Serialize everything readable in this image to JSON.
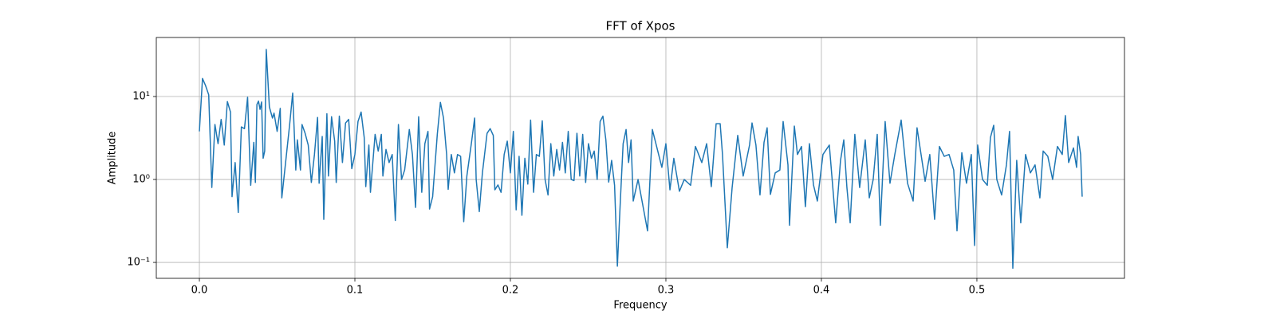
{
  "chart_data": {
    "type": "line",
    "title": "FFT of Xpos",
    "x_label": "Frequency",
    "y_label": "Amplitude",
    "color": "#1f77b4",
    "grid": true,
    "y_scale": "log",
    "xlim": [
      -0.0277,
      0.5949
    ],
    "ylim": [
      0.0643,
      51.5
    ],
    "xticks": [
      {
        "value": 0,
        "label": "0.0"
      },
      {
        "value": 0.1,
        "label": "0.1"
      },
      {
        "value": 0.2,
        "label": "0.2"
      },
      {
        "value": 0.3,
        "label": "0.3"
      },
      {
        "value": 0.4,
        "label": "0.4"
      },
      {
        "value": 0.5,
        "label": "0.5"
      }
    ],
    "yticks": [
      {
        "value": 0.1,
        "label": "10⁻¹"
      },
      {
        "value": 1,
        "label": "10⁰"
      },
      {
        "value": 10,
        "label": "10¹"
      }
    ],
    "x": [
      0,
      0.002,
      0.004,
      0.006,
      0.008,
      0.01,
      0.012,
      0.014,
      0.016,
      0.018,
      0.02,
      0.021,
      0.023,
      0.025,
      0.027,
      0.029,
      0.031,
      0.033,
      0.035,
      0.036,
      0.037,
      0.038,
      0.039,
      0.04,
      0.041,
      0.042,
      0.043,
      0.045,
      0.047,
      0.048,
      0.05,
      0.052,
      0.053,
      0.058,
      0.06,
      0.062,
      0.063,
      0.065,
      0.066,
      0.068,
      0.07,
      0.072,
      0.074,
      0.076,
      0.077,
      0.079,
      0.08,
      0.082,
      0.083,
      0.085,
      0.087,
      0.088,
      0.09,
      0.092,
      0.094,
      0.096,
      0.098,
      0.1,
      0.102,
      0.104,
      0.106,
      0.107,
      0.109,
      0.11,
      0.113,
      0.115,
      0.117,
      0.118,
      0.12,
      0.122,
      0.124,
      0.126,
      0.128,
      0.13,
      0.132,
      0.135,
      0.137,
      0.139,
      0.141,
      0.143,
      0.145,
      0.147,
      0.148,
      0.15,
      0.153,
      0.155,
      0.157,
      0.159,
      0.16,
      0.162,
      0.164,
      0.166,
      0.168,
      0.17,
      0.172,
      0.175,
      0.177,
      0.178,
      0.18,
      0.182,
      0.185,
      0.187,
      0.189,
      0.19,
      0.192,
      0.194,
      0.196,
      0.198,
      0.2,
      0.2019,
      0.2037,
      0.2056,
      0.2074,
      0.2093,
      0.2112,
      0.213,
      0.2149,
      0.2167,
      0.2186,
      0.2205,
      0.2223,
      0.2242,
      0.226,
      0.2279,
      0.2298,
      0.2316,
      0.2335,
      0.2353,
      0.2372,
      0.2391,
      0.2409,
      0.2428,
      0.2446,
      0.2465,
      0.2484,
      0.2502,
      0.2521,
      0.2539,
      0.2558,
      0.2577,
      0.2595,
      0.2614,
      0.2632,
      0.2651,
      0.267,
      0.2688,
      0.2707,
      0.2725,
      0.2744,
      0.276,
      0.2776,
      0.279,
      0.2821,
      0.2882,
      0.2913,
      0.2974,
      0.3,
      0.3026,
      0.3051,
      0.3087,
      0.3118,
      0.3159,
      0.319,
      0.3231,
      0.3262,
      0.3292,
      0.3323,
      0.3349,
      0.3364,
      0.3395,
      0.3426,
      0.3462,
      0.3497,
      0.3538,
      0.3554,
      0.3579,
      0.3605,
      0.3631,
      0.3651,
      0.3672,
      0.3703,
      0.3733,
      0.3754,
      0.3785,
      0.3795,
      0.3826,
      0.3846,
      0.3872,
      0.3897,
      0.3923,
      0.3949,
      0.3974,
      0.401,
      0.4051,
      0.4092,
      0.4123,
      0.4144,
      0.4164,
      0.4185,
      0.4215,
      0.4246,
      0.4282,
      0.4308,
      0.4333,
      0.4359,
      0.4379,
      0.441,
      0.4441,
      0.4472,
      0.4513,
      0.4554,
      0.459,
      0.4615,
      0.4641,
      0.4667,
      0.4697,
      0.4728,
      0.4759,
      0.479,
      0.4821,
      0.4851,
      0.4872,
      0.4903,
      0.4933,
      0.4964,
      0.4985,
      0.5005,
      0.5036,
      0.5067,
      0.5087,
      0.5108,
      0.5128,
      0.5159,
      0.519,
      0.521,
      0.5231,
      0.5256,
      0.5282,
      0.5313,
      0.5344,
      0.5374,
      0.5405,
      0.5426,
      0.5456,
      0.5487,
      0.5518,
      0.5549,
      0.5569,
      0.559,
      0.5621,
      0.5641,
      0.5651,
      0.5667,
      0.5677
    ],
    "values": [
      3.8,
      16.5,
      13.5,
      10.5,
      0.8,
      4.6,
      2.7,
      5.3,
      2.6,
      8.7,
      6.5,
      0.62,
      1.6,
      0.4,
      4.3,
      4.1,
      9.8,
      0.85,
      2.8,
      0.92,
      8.0,
      8.8,
      7.0,
      8.6,
      1.8,
      2.2,
      37,
      7.5,
      5.5,
      6.3,
      3.8,
      7.2,
      0.6,
      4.5,
      11,
      1.3,
      3.0,
      1.3,
      4.6,
      3.6,
      2.6,
      0.92,
      2.0,
      5.6,
      0.9,
      3.3,
      0.33,
      6.2,
      1.1,
      5.7,
      2.9,
      0.92,
      5.8,
      1.6,
      4.8,
      5.3,
      1.35,
      2.0,
      5.0,
      6.5,
      3.2,
      0.82,
      2.6,
      0.7,
      3.5,
      2.2,
      3.5,
      1.1,
      2.3,
      1.6,
      2.0,
      0.32,
      4.6,
      1.0,
      1.3,
      4.0,
      2.0,
      0.46,
      5.7,
      0.7,
      2.7,
      3.8,
      0.44,
      0.62,
      3.5,
      8.5,
      5.5,
      2.0,
      0.76,
      2.0,
      1.2,
      2.0,
      1.9,
      0.31,
      1.1,
      2.8,
      5.5,
      1.0,
      0.41,
      1.2,
      3.6,
      4.1,
      3.4,
      0.75,
      0.86,
      0.7,
      2.0,
      2.9,
      1.2,
      3.8,
      0.43,
      1.9,
      0.37,
      1.8,
      0.88,
      5.2,
      0.7,
      2.0,
      1.9,
      5.1,
      1.0,
      0.65,
      2.7,
      1.1,
      2.3,
      1.3,
      2.8,
      1.2,
      3.8,
      1.0,
      0.97,
      3.6,
      1.1,
      3.5,
      0.92,
      2.7,
      1.8,
      2.2,
      1.0,
      5.0,
      5.8,
      3.0,
      0.93,
      1.7,
      0.85,
      0.09,
      0.55,
      2.7,
      4.0,
      1.6,
      3.0,
      0.55,
      1.0,
      0.24,
      4.0,
      1.4,
      2.7,
      0.75,
      1.8,
      0.72,
      1.0,
      0.85,
      2.5,
      1.6,
      2.7,
      0.82,
      4.7,
      4.7,
      2.0,
      0.15,
      0.8,
      3.4,
      1.1,
      2.6,
      4.8,
      2.6,
      0.65,
      2.8,
      4.2,
      0.66,
      1.2,
      1.3,
      5.0,
      1.5,
      0.28,
      4.4,
      2.0,
      2.5,
      0.47,
      2.7,
      0.86,
      0.55,
      2.0,
      2.6,
      0.3,
      1.7,
      3.0,
      0.8,
      0.3,
      3.5,
      0.8,
      3.0,
      0.6,
      1.0,
      3.5,
      0.28,
      5.0,
      0.9,
      2.0,
      5.2,
      0.9,
      0.55,
      4.2,
      2.0,
      0.95,
      2.0,
      0.33,
      2.5,
      1.9,
      2.0,
      1.3,
      0.24,
      2.1,
      0.9,
      2.0,
      0.16,
      2.6,
      1.0,
      0.85,
      3.2,
      4.5,
      1.0,
      0.65,
      1.5,
      3.8,
      0.085,
      1.7,
      0.3,
      2.0,
      1.2,
      1.5,
      0.6,
      2.2,
      1.9,
      1.0,
      2.5,
      2.0,
      5.9,
      1.6,
      2.4,
      1.4,
      3.3,
      2.0,
      0.62
    ]
  }
}
